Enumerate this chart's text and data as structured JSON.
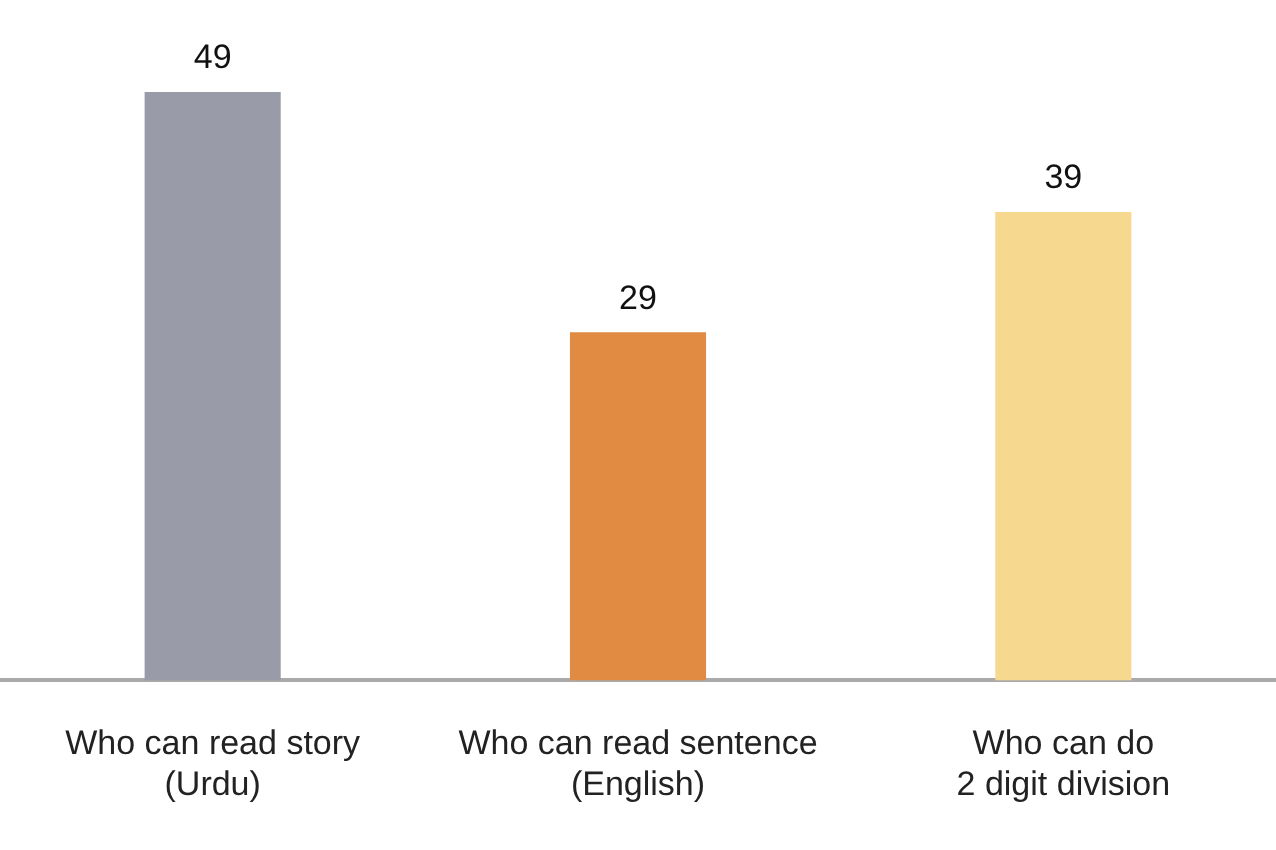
{
  "chart_data": {
    "type": "bar",
    "categories": [
      "Who can read story\n(Urdu)",
      "Who can read sentence\n(English)",
      "Who can do\n2 digit division"
    ],
    "values": [
      49,
      29,
      39
    ],
    "colors": [
      "#9a9ba8",
      "#e08a42",
      "#f6d98e"
    ],
    "data_labels": true,
    "grid": false,
    "legend": false,
    "tick_labels": "x"
  }
}
